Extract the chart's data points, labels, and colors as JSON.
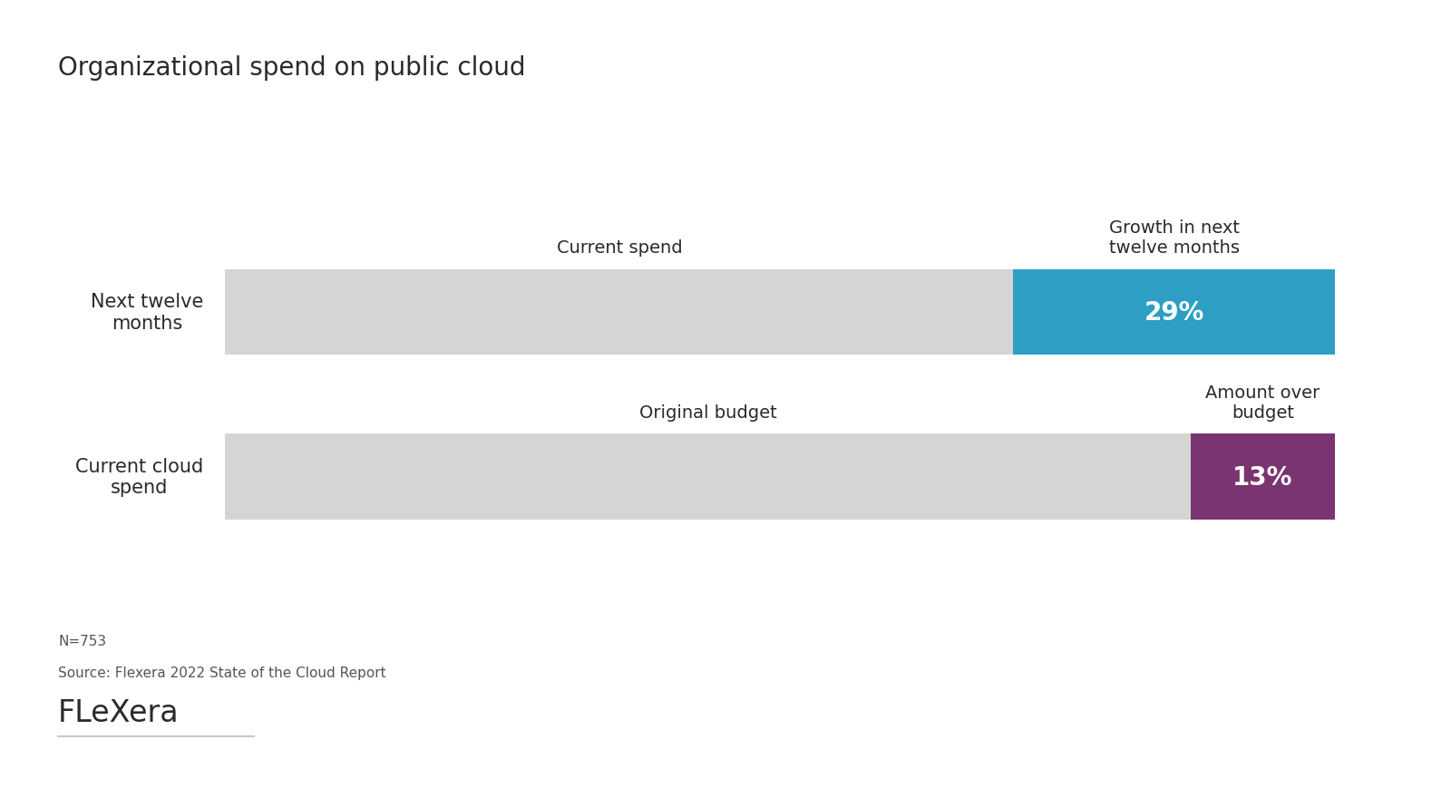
{
  "title": "Organizational spend on public cloud",
  "background_color": "#ffffff",
  "bars": [
    {
      "label": "Next twelve\nmonths",
      "base_value": 71,
      "extra_value": 29,
      "base_color": "#d5d5d3",
      "extra_color": "#2e9fc4",
      "extra_label": "29%",
      "base_segment_label": "Current spend",
      "extra_segment_label": "Growth in next\ntwelve months"
    },
    {
      "label": "Current cloud\nspend",
      "base_value": 87,
      "extra_value": 13,
      "base_color": "#d5d5d3",
      "extra_color": "#7b3472",
      "extra_label": "13%",
      "base_segment_label": "Original budget",
      "extra_segment_label": "Amount over\nbudget"
    }
  ],
  "footnote_line1": "N=753",
  "footnote_line2": "Source: Flexera 2022 State of the Cloud Report",
  "text_color": "#2a2a2a",
  "footnote_color": "#555555",
  "logo_color": "#2a2a2a",
  "bar_height": 0.52,
  "xlim": [
    0,
    100
  ],
  "label_fontsize": 15,
  "annotation_fontsize": 14,
  "pct_fontsize": 20,
  "title_fontsize": 20,
  "footnote_fontsize": 11,
  "logo_fontsize": 24
}
